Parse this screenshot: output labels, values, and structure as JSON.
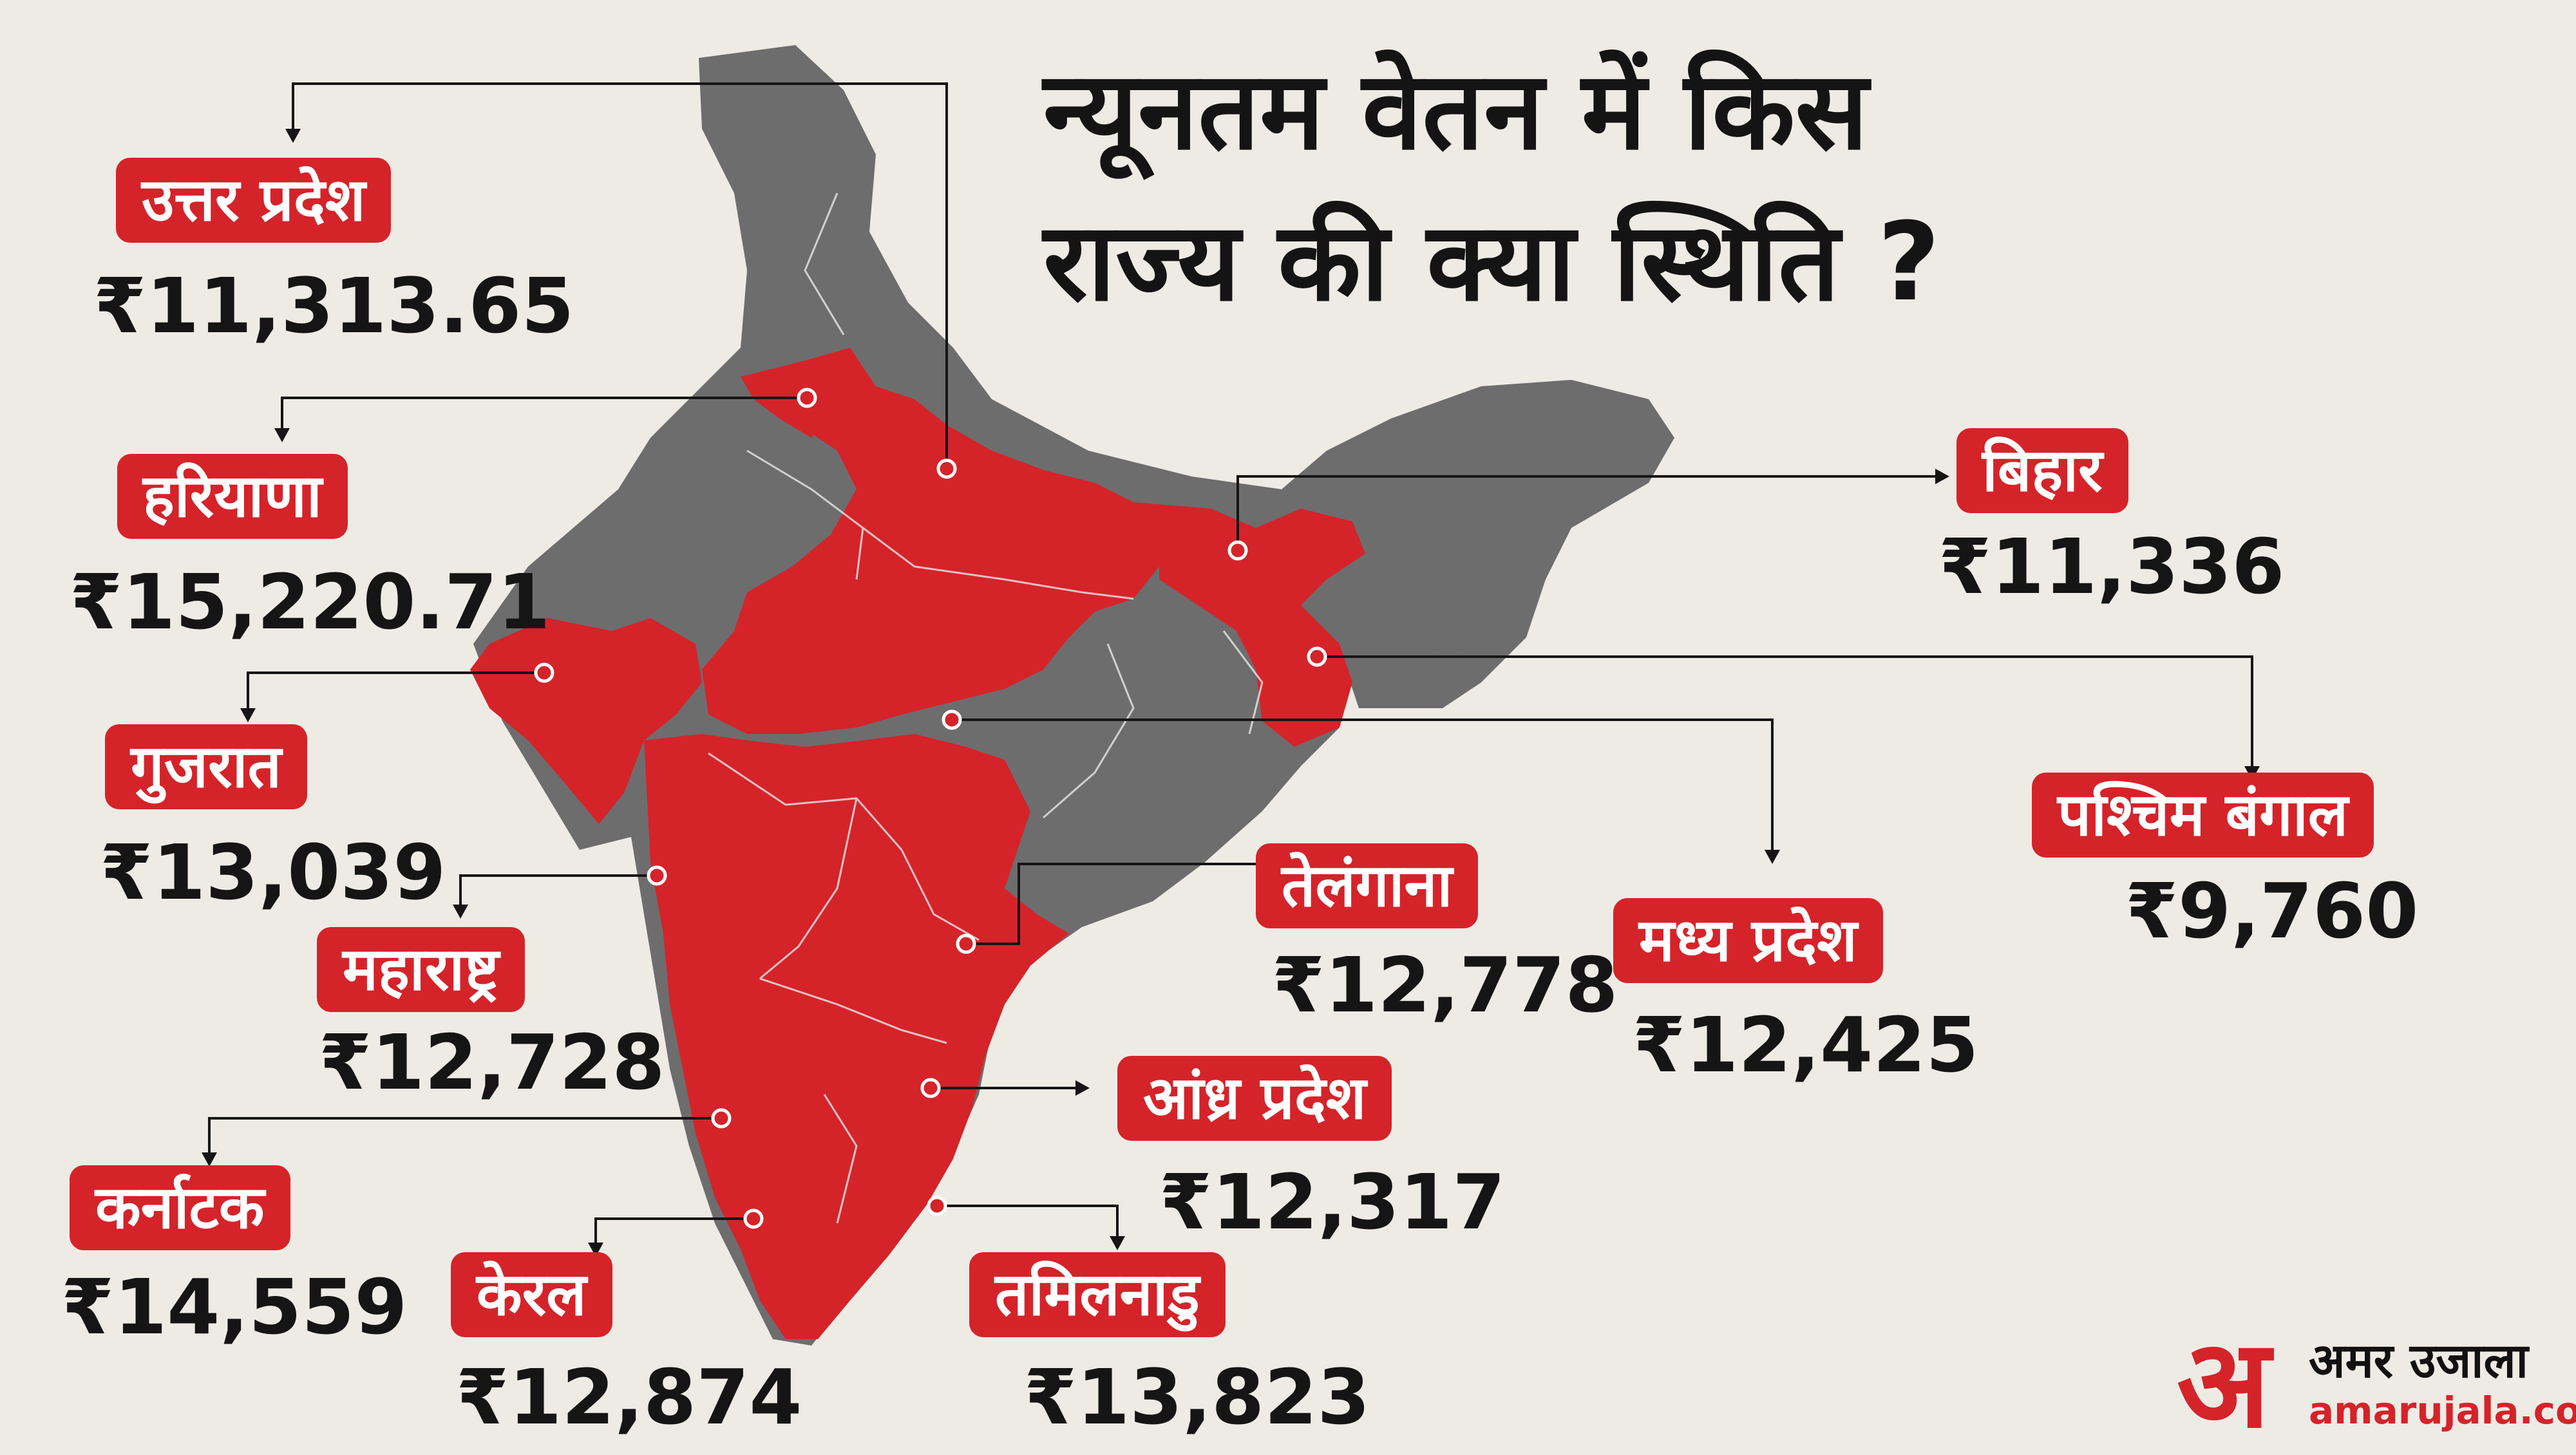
{
  "title": {
    "line1": "न्यूनतम वेतन में किस",
    "line2": "राज्य की क्या स्थिति ?"
  },
  "colors": {
    "highlight": "#d5232a",
    "other_states": "#6d6d6e",
    "background": "#eeebe5",
    "text": "#151515"
  },
  "states": [
    {
      "id": "uttar-pradesh",
      "name": "उत्तर प्रदेश",
      "wage": "₹11,313.65"
    },
    {
      "id": "haryana",
      "name": "हरियाणा",
      "wage": "₹15,220.71"
    },
    {
      "id": "gujarat",
      "name": "गुजरात",
      "wage": "₹13,039"
    },
    {
      "id": "maharashtra",
      "name": "महाराष्ट्र",
      "wage": "₹12,728"
    },
    {
      "id": "karnataka",
      "name": "कर्नाटक",
      "wage": "₹14,559"
    },
    {
      "id": "kerala",
      "name": "केरल",
      "wage": "₹12,874"
    },
    {
      "id": "tamil-nadu",
      "name": "तमिलनाडु",
      "wage": "₹13,823"
    },
    {
      "id": "andhra-pradesh",
      "name": "आंध्र प्रदेश",
      "wage": "₹12,317"
    },
    {
      "id": "telangana",
      "name": "तेलंगाना",
      "wage": "₹12,778"
    },
    {
      "id": "madhya-pradesh",
      "name": "मध्य प्रदेश",
      "wage": "₹12,425"
    },
    {
      "id": "bihar",
      "name": "बिहार",
      "wage": "₹11,336"
    },
    {
      "id": "west-bengal",
      "name": "पश्चिम बंगाल",
      "wage": "₹9,760"
    }
  ],
  "branding": {
    "mark": "अ",
    "name": "अमर उजाला",
    "site": "amarujala.com"
  }
}
